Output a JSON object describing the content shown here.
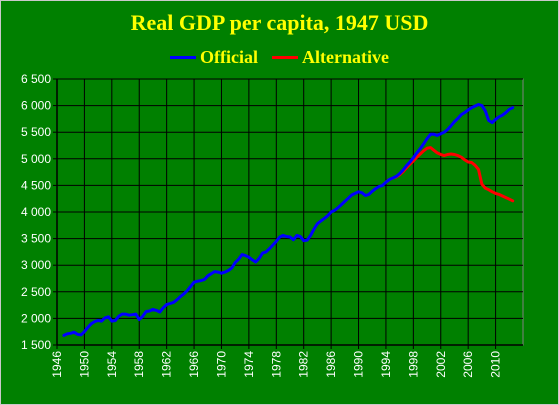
{
  "chart_data": {
    "type": "line",
    "title": "Real GDP per capita, 1947 USD",
    "xlabel": "",
    "ylabel": "",
    "xlim": [
      1946,
      2014
    ],
    "ylim": [
      1500,
      6500
    ],
    "x_ticks": [
      1946,
      1950,
      1954,
      1958,
      1962,
      1966,
      1970,
      1974,
      1978,
      1982,
      1986,
      1990,
      1994,
      1998,
      2002,
      2006,
      2010
    ],
    "x_tick_labels": [
      "1946",
      "1950",
      "1954",
      "1958",
      "1962",
      "1966",
      "1970",
      "1974",
      "1978",
      "1982",
      "1986",
      "1990",
      "1994",
      "1998",
      "2002",
      "2006",
      "2010"
    ],
    "y_ticks": [
      1500,
      2000,
      2500,
      3000,
      3500,
      4000,
      4500,
      5000,
      5500,
      6000,
      6500
    ],
    "y_tick_labels": [
      "1 500",
      "2 000",
      "2 500",
      "3 000",
      "3 500",
      "4 000",
      "4 500",
      "5 000",
      "5 500",
      "6 000",
      "6 500"
    ],
    "grid": true,
    "legend_position": "top-center",
    "background_color": "#008000",
    "text_color": "#ffff00",
    "series": [
      {
        "name": "Official",
        "color": "#0000ff",
        "points": [
          [
            1947.0,
            1680
          ],
          [
            1947.5,
            1710
          ],
          [
            1948.0,
            1720
          ],
          [
            1948.5,
            1740
          ],
          [
            1949.0,
            1700
          ],
          [
            1949.5,
            1690
          ],
          [
            1950.0,
            1750
          ],
          [
            1950.5,
            1830
          ],
          [
            1951.0,
            1900
          ],
          [
            1951.5,
            1940
          ],
          [
            1952.0,
            1960
          ],
          [
            1952.5,
            1950
          ],
          [
            1953.0,
            2010
          ],
          [
            1953.5,
            2030
          ],
          [
            1954.0,
            1950
          ],
          [
            1954.5,
            1960
          ],
          [
            1955.0,
            2040
          ],
          [
            1955.5,
            2080
          ],
          [
            1956.0,
            2080
          ],
          [
            1956.5,
            2060
          ],
          [
            1957.0,
            2070
          ],
          [
            1957.5,
            2080
          ],
          [
            1958.0,
            1980
          ],
          [
            1958.5,
            2040
          ],
          [
            1959.0,
            2130
          ],
          [
            1959.5,
            2140
          ],
          [
            1960.0,
            2170
          ],
          [
            1960.5,
            2150
          ],
          [
            1961.0,
            2120
          ],
          [
            1961.5,
            2200
          ],
          [
            1962.0,
            2260
          ],
          [
            1962.5,
            2280
          ],
          [
            1963.0,
            2300
          ],
          [
            1963.5,
            2350
          ],
          [
            1964.0,
            2410
          ],
          [
            1964.5,
            2460
          ],
          [
            1965.0,
            2520
          ],
          [
            1965.5,
            2600
          ],
          [
            1966.0,
            2680
          ],
          [
            1966.5,
            2700
          ],
          [
            1967.0,
            2710
          ],
          [
            1967.5,
            2730
          ],
          [
            1968.0,
            2800
          ],
          [
            1968.5,
            2840
          ],
          [
            1969.0,
            2880
          ],
          [
            1969.5,
            2870
          ],
          [
            1970.0,
            2850
          ],
          [
            1970.5,
            2870
          ],
          [
            1971.0,
            2900
          ],
          [
            1971.5,
            2950
          ],
          [
            1972.0,
            3050
          ],
          [
            1972.5,
            3110
          ],
          [
            1973.0,
            3200
          ],
          [
            1973.5,
            3180
          ],
          [
            1974.0,
            3150
          ],
          [
            1974.5,
            3100
          ],
          [
            1975.0,
            3060
          ],
          [
            1975.5,
            3130
          ],
          [
            1976.0,
            3230
          ],
          [
            1976.5,
            3250
          ],
          [
            1977.0,
            3310
          ],
          [
            1977.5,
            3380
          ],
          [
            1978.0,
            3450
          ],
          [
            1978.5,
            3530
          ],
          [
            1979.0,
            3560
          ],
          [
            1979.5,
            3540
          ],
          [
            1980.0,
            3530
          ],
          [
            1980.5,
            3480
          ],
          [
            1981.0,
            3560
          ],
          [
            1981.5,
            3540
          ],
          [
            1982.0,
            3460
          ],
          [
            1982.5,
            3470
          ],
          [
            1983.0,
            3560
          ],
          [
            1983.5,
            3680
          ],
          [
            1984.0,
            3780
          ],
          [
            1984.5,
            3830
          ],
          [
            1985.0,
            3880
          ],
          [
            1985.5,
            3930
          ],
          [
            1986.0,
            4000
          ],
          [
            1986.5,
            4030
          ],
          [
            1987.0,
            4080
          ],
          [
            1987.5,
            4140
          ],
          [
            1988.0,
            4200
          ],
          [
            1988.5,
            4260
          ],
          [
            1989.0,
            4320
          ],
          [
            1989.5,
            4350
          ],
          [
            1990.0,
            4380
          ],
          [
            1990.5,
            4360
          ],
          [
            1991.0,
            4310
          ],
          [
            1991.5,
            4330
          ],
          [
            1992.0,
            4390
          ],
          [
            1992.5,
            4440
          ],
          [
            1993.0,
            4480
          ],
          [
            1993.5,
            4500
          ],
          [
            1994.0,
            4560
          ],
          [
            1994.5,
            4610
          ],
          [
            1995.0,
            4640
          ],
          [
            1995.5,
            4670
          ],
          [
            1996.0,
            4720
          ],
          [
            1996.5,
            4790
          ],
          [
            1997.0,
            4870
          ],
          [
            1997.5,
            4940
          ],
          [
            1998.0,
            5020
          ],
          [
            1998.5,
            5110
          ],
          [
            1999.0,
            5190
          ],
          [
            1999.5,
            5280
          ],
          [
            2000.0,
            5380
          ],
          [
            2000.5,
            5460
          ],
          [
            2001.0,
            5460
          ],
          [
            2001.5,
            5440
          ],
          [
            2002.0,
            5470
          ],
          [
            2002.5,
            5500
          ],
          [
            2003.0,
            5550
          ],
          [
            2003.5,
            5620
          ],
          [
            2004.0,
            5700
          ],
          [
            2004.5,
            5760
          ],
          [
            2005.0,
            5830
          ],
          [
            2005.5,
            5870
          ],
          [
            2006.0,
            5920
          ],
          [
            2006.5,
            5960
          ],
          [
            2007.0,
            5990
          ],
          [
            2007.5,
            6020
          ],
          [
            2008.0,
            6000
          ],
          [
            2008.5,
            5900
          ],
          [
            2009.0,
            5720
          ],
          [
            2009.5,
            5680
          ],
          [
            2010.0,
            5740
          ],
          [
            2010.5,
            5790
          ],
          [
            2011.0,
            5820
          ],
          [
            2011.5,
            5870
          ],
          [
            2012.0,
            5930
          ],
          [
            2012.5,
            5960
          ]
        ]
      },
      {
        "name": "Alternative",
        "color": "#ff0000",
        "points": [
          [
            1994.0,
            4560
          ],
          [
            1994.5,
            4610
          ],
          [
            1995.0,
            4640
          ],
          [
            1995.5,
            4660
          ],
          [
            1996.0,
            4700
          ],
          [
            1996.5,
            4760
          ],
          [
            1997.0,
            4830
          ],
          [
            1997.5,
            4900
          ],
          [
            1998.0,
            4960
          ],
          [
            1998.5,
            5030
          ],
          [
            1999.0,
            5090
          ],
          [
            1999.5,
            5150
          ],
          [
            2000.0,
            5200
          ],
          [
            2000.5,
            5210
          ],
          [
            2001.0,
            5160
          ],
          [
            2001.5,
            5110
          ],
          [
            2002.0,
            5080
          ],
          [
            2002.5,
            5060
          ],
          [
            2003.0,
            5080
          ],
          [
            2003.5,
            5090
          ],
          [
            2004.0,
            5080
          ],
          [
            2004.5,
            5060
          ],
          [
            2005.0,
            5030
          ],
          [
            2005.5,
            4980
          ],
          [
            2006.0,
            4940
          ],
          [
            2006.5,
            4930
          ],
          [
            2007.0,
            4880
          ],
          [
            2007.5,
            4800
          ],
          [
            2008.0,
            4520
          ],
          [
            2008.5,
            4450
          ],
          [
            2009.0,
            4420
          ],
          [
            2009.5,
            4380
          ],
          [
            2010.0,
            4350
          ],
          [
            2010.5,
            4330
          ],
          [
            2011.0,
            4300
          ],
          [
            2011.5,
            4270
          ],
          [
            2012.0,
            4240
          ],
          [
            2012.5,
            4210
          ]
        ]
      }
    ]
  }
}
